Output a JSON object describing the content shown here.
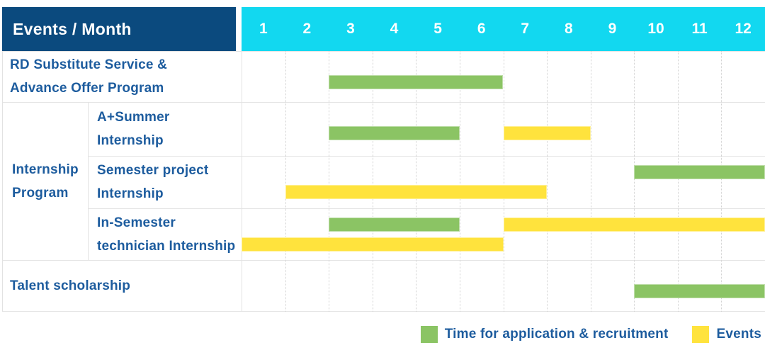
{
  "colors": {
    "navy": "#0b4a7e",
    "cyan": "#12d8f0",
    "green": "#8bc464",
    "yellow": "#ffe33d",
    "text_blue": "#1d5c9e",
    "grid": "#e4e4e4",
    "white": "#ffffff"
  },
  "chart_data": {
    "type": "gantt",
    "corner_label": "Events / Month",
    "months": [
      "1",
      "2",
      "3",
      "4",
      "5",
      "6",
      "7",
      "8",
      "9",
      "10",
      "11",
      "12"
    ],
    "x_range": [
      1,
      12
    ],
    "grid": true,
    "legend_position": "bottom-right",
    "legend": [
      {
        "key": "green",
        "label": "Time for application & recruitment"
      },
      {
        "key": "yellow",
        "label": "Events"
      }
    ],
    "group": {
      "label": "Internship\nProgram",
      "member_rows": [
        1,
        2,
        3
      ]
    },
    "rows": [
      {
        "label": "RD Substitute Service &\nAdvance Offer Program",
        "bars": [
          {
            "type": "green",
            "start_month": 3,
            "end_month": 6,
            "lane": "single"
          }
        ]
      },
      {
        "label": "A+Summer\nInternship",
        "bars": [
          {
            "type": "green",
            "start_month": 3,
            "end_month": 5,
            "lane": "single"
          },
          {
            "type": "yellow",
            "start_month": 7,
            "end_month": 8,
            "lane": "single"
          }
        ]
      },
      {
        "label": "Semester project\nInternship",
        "bars": [
          {
            "type": "green",
            "start_month": 10,
            "end_month": 12,
            "lane": "top"
          },
          {
            "type": "yellow",
            "start_month": 2,
            "end_month": 7,
            "lane": "bottom"
          }
        ]
      },
      {
        "label": "In-Semester\ntechnician Internship",
        "bars": [
          {
            "type": "green",
            "start_month": 3,
            "end_month": 5,
            "lane": "top"
          },
          {
            "type": "yellow",
            "start_month": 7,
            "end_month": 12,
            "lane": "top"
          },
          {
            "type": "yellow",
            "start_month": 1,
            "end_month": 6,
            "lane": "bottom"
          }
        ]
      },
      {
        "label": "Talent scholarship",
        "bars": [
          {
            "type": "green",
            "start_month": 10,
            "end_month": 12,
            "lane": "single"
          }
        ]
      }
    ],
    "bar_meaning": {
      "green": "Time for application & recruitment",
      "yellow": "Events"
    }
  }
}
